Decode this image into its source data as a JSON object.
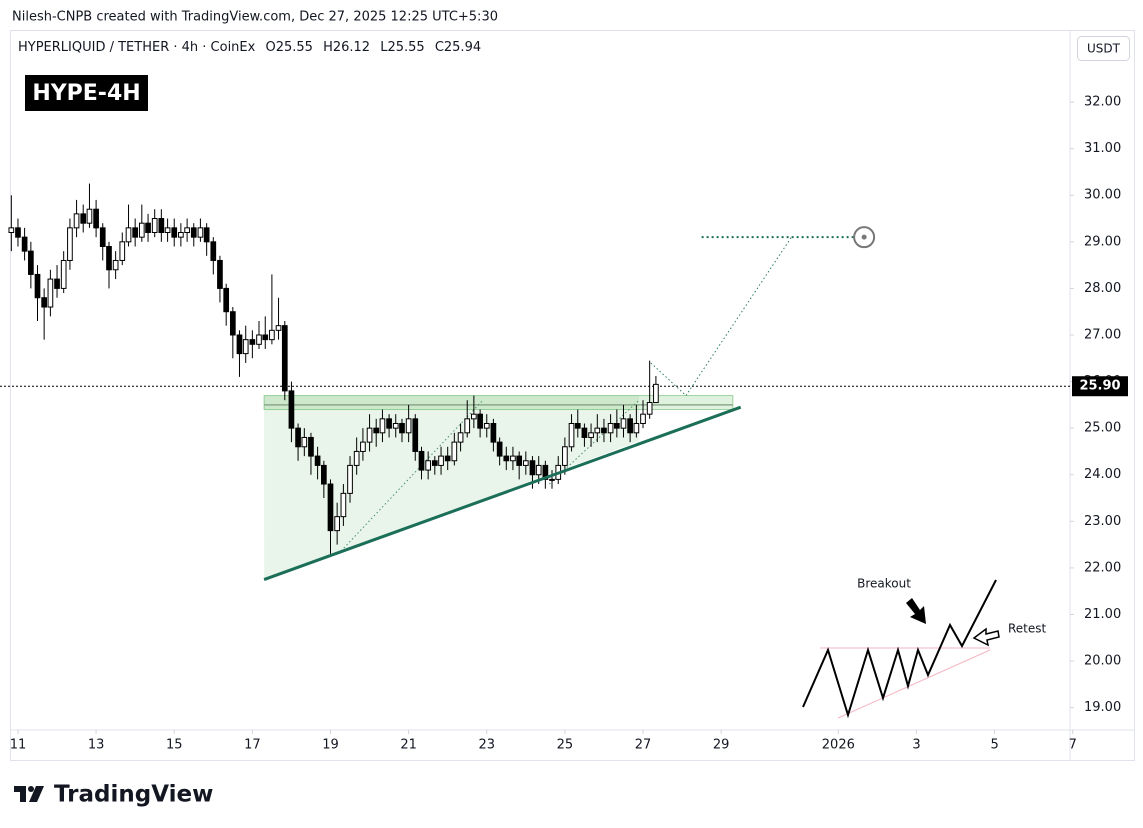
{
  "header": {
    "credit": "Nilesh-CNPB created with TradingView.com, Dec 27, 2025 12:25 UTC+5:30",
    "symbol": "HYPERLIQUID / TETHER · 4h · CoinEx",
    "ohlc": [
      "O25.55",
      "H26.12",
      "L25.55",
      "C25.94"
    ],
    "currency": "USDT",
    "badge": "HYPE-4H"
  },
  "footer": {
    "logo": "TradingView"
  },
  "inset": {
    "labels": [
      "Breakout",
      "Retest"
    ]
  },
  "chart_data": {
    "type": "candlestick",
    "xlim": [
      10.54,
      37.93
    ],
    "ylim": [
      18.52,
      33.44
    ],
    "grid": false,
    "up_color": "#ffffff",
    "down_color": "#000000",
    "border_color": "#000000",
    "xticks": [
      11,
      13,
      15,
      17,
      19,
      21,
      23,
      25,
      27,
      29,
      {
        "value": 32,
        "label": "2026"
      },
      {
        "value": 34,
        "label": "3"
      },
      {
        "value": 36,
        "label": "5"
      },
      {
        "value": 38,
        "label": "7"
      }
    ],
    "yticks": [
      {
        "value": 19,
        "label": "19.00"
      },
      {
        "value": 20,
        "label": "20.00"
      },
      {
        "value": 21,
        "label": "21.00"
      },
      {
        "value": 22,
        "label": "22.00"
      },
      {
        "value": 23,
        "label": "23.00"
      },
      {
        "value": 24,
        "label": "24.00"
      },
      {
        "value": 25,
        "label": "25.00"
      },
      {
        "value": 26,
        "label": "26.00"
      },
      {
        "value": 27,
        "label": "27.00"
      },
      {
        "value": 28,
        "label": "28.00"
      },
      {
        "value": 29,
        "label": "29.00"
      },
      {
        "value": 30,
        "label": "30.00"
      },
      {
        "value": 31,
        "label": "31.00"
      },
      {
        "value": 32,
        "label": "32.00"
      }
    ],
    "price_line": {
      "value": 25.9,
      "label": "25.90"
    },
    "x": [
      10.83,
      11,
      11.17,
      11.33,
      11.5,
      11.67,
      11.83,
      12,
      12.17,
      12.33,
      12.5,
      12.67,
      12.83,
      13,
      13.17,
      13.33,
      13.5,
      13.67,
      13.83,
      14,
      14.17,
      14.33,
      14.5,
      14.67,
      14.83,
      15,
      15.17,
      15.33,
      15.5,
      15.67,
      15.83,
      16,
      16.17,
      16.33,
      16.5,
      16.67,
      16.83,
      17,
      17.17,
      17.33,
      17.5,
      17.67,
      17.83,
      18,
      18.17,
      18.33,
      18.5,
      18.67,
      18.83,
      19,
      19.17,
      19.33,
      19.5,
      19.67,
      19.83,
      20,
      20.17,
      20.33,
      20.5,
      20.67,
      20.83,
      21,
      21.17,
      21.33,
      21.5,
      21.67,
      21.83,
      22,
      22.17,
      22.33,
      22.5,
      22.67,
      22.83,
      23,
      23.17,
      23.33,
      23.5,
      23.67,
      23.83,
      24,
      24.17,
      24.33,
      24.5,
      24.67,
      24.83,
      25,
      25.17,
      25.33,
      25.5,
      25.67,
      25.83,
      26,
      26.17,
      26.33,
      26.5,
      26.67,
      26.83,
      27,
      27.17,
      27.33
    ],
    "open": [
      29.2,
      29.3,
      29.1,
      28.8,
      28.3,
      27.8,
      27.6,
      28.2,
      28.0,
      28.6,
      29.3,
      29.6,
      29.4,
      29.7,
      29.3,
      28.9,
      28.4,
      28.6,
      29.0,
      29.3,
      29.1,
      29.4,
      29.2,
      29.5,
      29.2,
      29.3,
      29.1,
      29.2,
      29.3,
      29.1,
      29.3,
      29.0,
      28.6,
      28.0,
      27.5,
      27.0,
      26.6,
      26.9,
      26.8,
      27.0,
      26.9,
      27.1,
      27.2,
      25.8,
      25.0,
      24.6,
      24.8,
      24.4,
      24.2,
      23.8,
      22.8,
      23.1,
      23.6,
      24.2,
      24.5,
      24.7,
      25.0,
      24.9,
      25.2,
      25.0,
      25.1,
      24.9,
      25.2,
      24.5,
      24.1,
      24.3,
      24.2,
      24.4,
      24.3,
      24.7,
      24.9,
      25.2,
      25.3,
      25.0,
      25.1,
      24.7,
      24.4,
      24.3,
      24.4,
      24.2,
      24.3,
      24.0,
      24.2,
      23.9,
      23.9,
      24.2,
      24.6,
      25.1,
      25.0,
      24.8,
      24.9,
      25.0,
      24.9,
      25.1,
      25.0,
      25.2,
      24.9,
      25.1,
      25.3,
      25.55
    ],
    "high": [
      30.0,
      29.5,
      29.3,
      29.0,
      28.5,
      28.0,
      28.4,
      28.5,
      28.8,
      29.5,
      29.9,
      29.8,
      30.25,
      29.9,
      29.4,
      29.0,
      28.8,
      29.2,
      29.8,
      29.5,
      29.8,
      29.6,
      29.7,
      29.7,
      29.5,
      29.5,
      29.4,
      29.5,
      29.4,
      29.5,
      29.4,
      29.1,
      28.7,
      28.1,
      27.6,
      27.1,
      27.2,
      27.1,
      27.3,
      27.4,
      28.3,
      27.8,
      27.3,
      26.0,
      25.1,
      25.0,
      24.9,
      24.6,
      24.3,
      23.9,
      23.4,
      23.8,
      24.4,
      24.8,
      25.0,
      25.3,
      25.2,
      25.4,
      25.3,
      25.3,
      25.2,
      25.5,
      25.3,
      24.6,
      24.5,
      24.4,
      24.6,
      24.6,
      24.9,
      25.1,
      25.6,
      25.7,
      25.4,
      25.3,
      25.2,
      24.8,
      24.6,
      24.6,
      24.5,
      24.5,
      24.4,
      24.4,
      24.3,
      24.1,
      24.4,
      24.8,
      25.3,
      25.4,
      25.1,
      25.1,
      25.3,
      25.2,
      25.3,
      25.4,
      25.5,
      25.3,
      25.5,
      25.6,
      26.45,
      26.12
    ],
    "low": [
      28.8,
      28.9,
      28.6,
      28.0,
      27.3,
      26.9,
      27.4,
      27.8,
      27.9,
      28.4,
      29.1,
      29.2,
      29.3,
      29.1,
      28.6,
      28.0,
      28.2,
      28.5,
      28.9,
      28.9,
      29.0,
      29.0,
      29.1,
      29.0,
      29.0,
      28.9,
      28.9,
      29.0,
      28.9,
      29.0,
      28.7,
      28.3,
      27.7,
      27.2,
      26.5,
      26.1,
      26.4,
      26.5,
      26.7,
      26.7,
      26.8,
      26.9,
      25.6,
      24.7,
      24.3,
      24.4,
      24.0,
      23.9,
      23.5,
      22.3,
      22.5,
      22.9,
      23.4,
      24.0,
      24.3,
      24.5,
      24.6,
      24.7,
      24.8,
      24.8,
      24.7,
      24.7,
      24.3,
      23.9,
      23.9,
      24.0,
      24.0,
      24.1,
      24.2,
      24.5,
      24.8,
      25.0,
      24.8,
      24.8,
      24.5,
      24.2,
      24.1,
      24.1,
      23.9,
      24.0,
      23.7,
      23.8,
      23.7,
      23.7,
      23.8,
      24.0,
      24.5,
      24.8,
      24.6,
      24.6,
      24.7,
      24.7,
      24.7,
      24.8,
      24.8,
      24.7,
      24.8,
      25.0,
      25.2,
      25.55
    ],
    "close": [
      29.3,
      29.1,
      28.8,
      28.3,
      27.8,
      27.6,
      28.2,
      28.0,
      28.6,
      29.3,
      29.6,
      29.4,
      29.7,
      29.3,
      28.9,
      28.4,
      28.6,
      29.0,
      29.3,
      29.1,
      29.4,
      29.2,
      29.5,
      29.2,
      29.3,
      29.1,
      29.2,
      29.3,
      29.1,
      29.3,
      29.0,
      28.6,
      28.0,
      27.5,
      27.0,
      26.6,
      26.9,
      26.8,
      27.0,
      26.9,
      27.1,
      27.2,
      25.8,
      25.0,
      24.6,
      24.8,
      24.4,
      24.2,
      23.8,
      22.8,
      23.1,
      23.6,
      24.2,
      24.5,
      24.7,
      25.0,
      24.9,
      25.2,
      25.0,
      25.1,
      24.9,
      25.2,
      24.5,
      24.1,
      24.3,
      24.2,
      24.4,
      24.3,
      24.7,
      24.9,
      25.2,
      25.3,
      25.0,
      25.1,
      24.7,
      24.4,
      24.3,
      24.4,
      24.2,
      24.3,
      24.0,
      24.2,
      23.9,
      23.9,
      24.2,
      24.6,
      25.1,
      25.0,
      24.8,
      24.9,
      25.0,
      24.9,
      25.1,
      25.0,
      25.2,
      24.9,
      25.1,
      25.3,
      25.55,
      25.94
    ],
    "triangle": {
      "x": [
        17.3,
        17.3,
        26.9,
        26.9
      ],
      "y": [
        25.7,
        21.75,
        24.72,
        25.7
      ],
      "color": "#4caf50"
    },
    "zone": {
      "x": [
        17.3,
        29.3
      ],
      "y": [
        25.4,
        25.7
      ],
      "mid": 25.5,
      "color": "#4caf50"
    },
    "trendline": {
      "x": [
        17.3,
        29.5
      ],
      "y": [
        21.75,
        25.45
      ],
      "color": "#1b6e57"
    },
    "guides": [
      {
        "x": [
          19.2,
          22.9
        ],
        "y": [
          22.3,
          25.6
        ]
      },
      {
        "x": [
          24.6,
          26.9
        ],
        "y": [
          23.8,
          25.6
        ]
      }
    ],
    "projection": {
      "x": [
        27.2,
        28.1,
        30.8
      ],
      "y": [
        26.4,
        25.7,
        29.1
      ],
      "color": "#2e7d5b"
    },
    "target": {
      "x": [
        28.5,
        32.5
      ],
      "y": 29.1,
      "marker_x": 32.66,
      "color": "#1b6e57"
    }
  }
}
